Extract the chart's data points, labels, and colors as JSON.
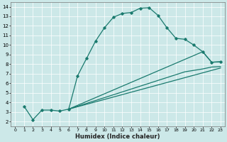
{
  "bg_color": "#cce8e8",
  "line_color": "#1a7a6e",
  "xlabel": "Humidex (Indice chaleur)",
  "xlim": [
    -0.5,
    23.5
  ],
  "ylim": [
    1.5,
    14.5
  ],
  "xtick_labels": [
    "0",
    "1",
    "2",
    "3",
    "4",
    "5",
    "6",
    "7",
    "8",
    "9",
    "10",
    "11",
    "12",
    "13",
    "14",
    "15",
    "16",
    "17",
    "18",
    "19",
    "20",
    "21",
    "22",
    "23"
  ],
  "ytick_labels": [
    "2",
    "3",
    "4",
    "5",
    "6",
    "7",
    "8",
    "9",
    "10",
    "11",
    "12",
    "13",
    "14"
  ],
  "main_x": [
    1,
    2,
    3,
    4,
    5,
    6,
    7,
    8,
    9,
    10,
    11,
    12,
    13,
    14,
    15,
    16,
    17,
    18,
    19,
    20,
    21,
    22,
    23
  ],
  "main_y": [
    3.6,
    2.2,
    3.2,
    3.2,
    3.1,
    3.3,
    6.8,
    8.6,
    10.4,
    11.8,
    12.9,
    13.3,
    13.4,
    13.85,
    13.9,
    13.1,
    11.8,
    10.7,
    10.6,
    10.0,
    9.3,
    8.2,
    8.25
  ],
  "line2_x": [
    6,
    21,
    22,
    23
  ],
  "line2_y": [
    3.3,
    9.3,
    8.2,
    8.25
  ],
  "line3_x": [
    6,
    19,
    20,
    21,
    22,
    23
  ],
  "line3_y": [
    3.3,
    7.2,
    7.35,
    7.5,
    7.7,
    7.75
  ],
  "line4_x": [
    6,
    23
  ],
  "line4_y": [
    3.3,
    7.6
  ]
}
